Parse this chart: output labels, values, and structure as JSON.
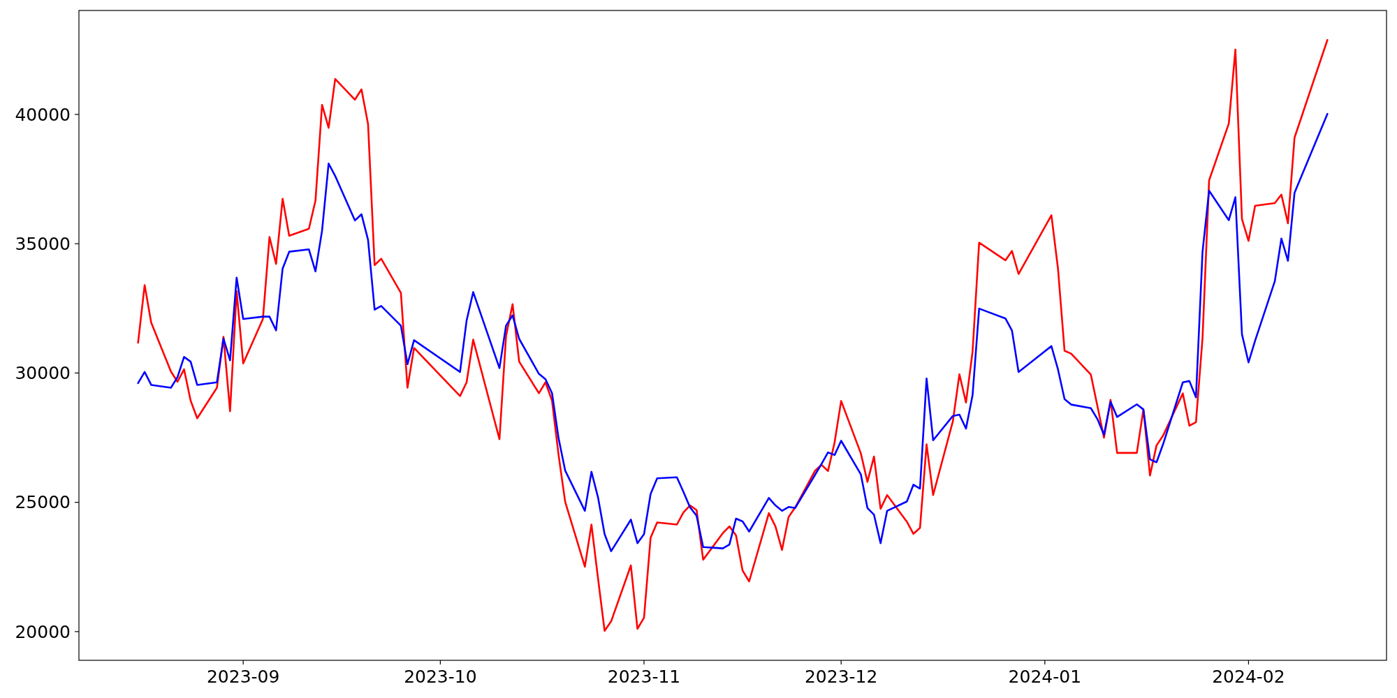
{
  "chart_data": {
    "type": "line",
    "x": [
      "2023-08-16",
      "2023-08-17",
      "2023-08-18",
      "2023-08-21",
      "2023-08-22",
      "2023-08-23",
      "2023-08-24",
      "2023-08-25",
      "2023-08-28",
      "2023-08-29",
      "2023-08-30",
      "2023-08-31",
      "2023-09-01",
      "2023-09-04",
      "2023-09-05",
      "2023-09-06",
      "2023-09-07",
      "2023-09-08",
      "2023-09-11",
      "2023-09-12",
      "2023-09-13",
      "2023-09-14",
      "2023-09-15",
      "2023-09-18",
      "2023-09-19",
      "2023-09-20",
      "2023-09-21",
      "2023-09-22",
      "2023-09-25",
      "2023-09-26",
      "2023-09-27",
      "2023-10-04",
      "2023-10-05",
      "2023-10-06",
      "2023-10-10",
      "2023-10-11",
      "2023-10-12",
      "2023-10-13",
      "2023-10-16",
      "2023-10-17",
      "2023-10-18",
      "2023-10-19",
      "2023-10-20",
      "2023-10-23",
      "2023-10-24",
      "2023-10-25",
      "2023-10-26",
      "2023-10-27",
      "2023-10-30",
      "2023-10-31",
      "2023-11-01",
      "2023-11-02",
      "2023-11-03",
      "2023-11-06",
      "2023-11-07",
      "2023-11-08",
      "2023-11-09",
      "2023-11-10",
      "2023-11-13",
      "2023-11-14",
      "2023-11-15",
      "2023-11-16",
      "2023-11-17",
      "2023-11-20",
      "2023-11-21",
      "2023-11-22",
      "2023-11-23",
      "2023-11-24",
      "2023-11-27",
      "2023-11-28",
      "2023-11-29",
      "2023-11-30",
      "2023-12-01",
      "2023-12-04",
      "2023-12-05",
      "2023-12-06",
      "2023-12-07",
      "2023-12-08",
      "2023-12-11",
      "2023-12-12",
      "2023-12-13",
      "2023-12-14",
      "2023-12-15",
      "2023-12-18",
      "2023-12-19",
      "2023-12-20",
      "2023-12-21",
      "2023-12-22",
      "2023-12-26",
      "2023-12-27",
      "2023-12-28",
      "2024-01-02",
      "2024-01-03",
      "2024-01-04",
      "2024-01-05",
      "2024-01-08",
      "2024-01-09",
      "2024-01-10",
      "2024-01-11",
      "2024-01-12",
      "2024-01-15",
      "2024-01-16",
      "2024-01-17",
      "2024-01-18",
      "2024-01-19",
      "2024-01-22",
      "2024-01-23",
      "2024-01-24",
      "2024-01-25",
      "2024-01-26",
      "2024-01-29",
      "2024-01-30",
      "2024-01-31",
      "2024-02-01",
      "2024-02-02",
      "2024-02-05",
      "2024-02-06",
      "2024-02-07",
      "2024-02-08",
      "2024-02-13"
    ],
    "series": [
      {
        "color": "#ff0000",
        "values": [
          31170,
          33400,
          31950,
          30060,
          29660,
          30140,
          28930,
          28250,
          29430,
          31400,
          28520,
          33160,
          30370,
          32090,
          35260,
          34220,
          36740,
          35310,
          35580,
          36670,
          40370,
          39480,
          41370,
          40570,
          40970,
          39630,
          34170,
          34420,
          33100,
          29430,
          30970,
          29110,
          29640,
          31290,
          27440,
          31430,
          32660,
          30440,
          29220,
          29640,
          28930,
          26820,
          25020,
          22510,
          24140,
          22060,
          20030,
          20400,
          22560,
          20110,
          20540,
          23630,
          24220,
          24140,
          24610,
          24880,
          24700,
          22780,
          23810,
          24070,
          23720,
          22360,
          21940,
          24580,
          24070,
          23160,
          24430,
          24800,
          26210,
          26450,
          26210,
          27310,
          28920,
          26890,
          25790,
          26770,
          24750,
          25280,
          24250,
          23780,
          24010,
          27240,
          25280,
          28130,
          29950,
          28860,
          30820,
          35040,
          34360,
          34720,
          33830,
          36100,
          34040,
          30860,
          30750,
          29940,
          28720,
          27500,
          28960,
          26910,
          26910,
          28590,
          26040,
          27200,
          27580,
          29210,
          27960,
          28100,
          31360,
          37450,
          39650,
          42510,
          35950,
          35110,
          36470,
          36570,
          36900,
          35790,
          39100,
          42880
        ]
      },
      {
        "color": "#0000ff",
        "values": [
          29610,
          30040,
          29540,
          29430,
          29840,
          30620,
          30440,
          29540,
          29640,
          31330,
          30490,
          33690,
          32090,
          32180,
          32180,
          31650,
          34040,
          34690,
          34780,
          33930,
          35500,
          38100,
          37620,
          35900,
          36140,
          35150,
          32450,
          32590,
          31830,
          30340,
          31270,
          30040,
          32030,
          33130,
          30190,
          31830,
          32230,
          31320,
          29970,
          29760,
          29220,
          27470,
          26230,
          24670,
          26180,
          25190,
          23770,
          23110,
          24330,
          23420,
          23770,
          25320,
          25930,
          25970,
          25400,
          24810,
          24480,
          23270,
          23220,
          23370,
          24370,
          24260,
          23870,
          25170,
          24880,
          24670,
          24820,
          24780,
          26050,
          26480,
          26930,
          26830,
          27380,
          26080,
          24780,
          24520,
          23420,
          24670,
          25030,
          25680,
          25530,
          29790,
          27400,
          28340,
          28390,
          27850,
          29140,
          32490,
          32110,
          31640,
          30040,
          31040,
          30140,
          28990,
          28780,
          28640,
          28220,
          27610,
          28890,
          28300,
          28790,
          28590,
          26660,
          26550,
          27250,
          29640,
          29690,
          29060,
          34690,
          37050,
          35910,
          36800,
          31500,
          30410,
          31250,
          33550,
          35200,
          34340,
          36970,
          40020
        ]
      }
    ],
    "xlim": [
      "2023-08-07",
      "2024-02-22"
    ],
    "xticks": [
      {
        "value": "2023-09-01",
        "label": "2023-09"
      },
      {
        "value": "2023-10-01",
        "label": "2023-10"
      },
      {
        "value": "2023-11-01",
        "label": "2023-11"
      },
      {
        "value": "2023-12-01",
        "label": "2023-12"
      },
      {
        "value": "2024-01-01",
        "label": "2024-01"
      },
      {
        "value": "2024-02-01",
        "label": "2024-02"
      }
    ],
    "ylim": [
      18890,
      44020
    ],
    "yticks": [
      20000,
      25000,
      30000,
      35000,
      40000
    ]
  }
}
